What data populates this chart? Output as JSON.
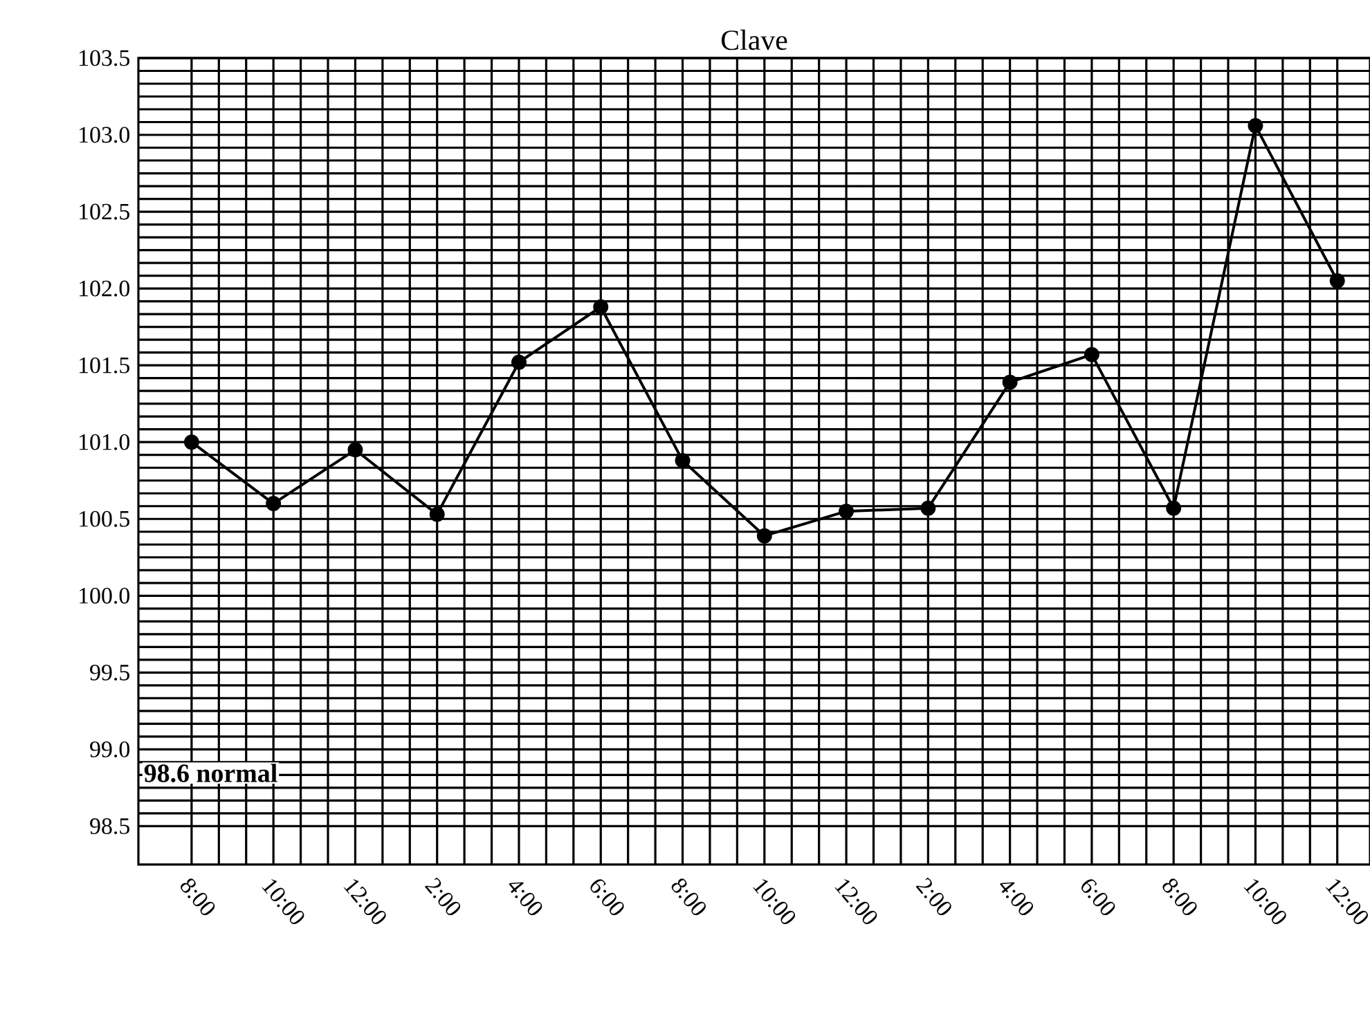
{
  "chart_data": {
    "type": "line",
    "title": "Clave",
    "categories": [
      "8:00",
      "10:00",
      "12:00",
      "2:00",
      "4:00",
      "6:00",
      "8:00",
      "10:00",
      "12:00",
      "2:00",
      "4:00",
      "6:00",
      "8:00",
      "10:00",
      "12:00"
    ],
    "values": [
      101.0,
      100.6,
      100.95,
      100.53,
      101.52,
      101.88,
      100.88,
      100.39,
      100.55,
      100.57,
      101.39,
      101.57,
      100.57,
      103.06,
      102.05
    ],
    "color": "#000000",
    "marker": "circle",
    "line_style": "solid",
    "grid": true,
    "ylim": [
      98.25,
      103.5
    ],
    "yticks": [
      98.5,
      {
        "value": 99,
        "label": "99.0"
      },
      99.5,
      {
        "value": 100,
        "label": "100.0"
      },
      100.5,
      {
        "value": 101,
        "label": "101.0"
      },
      101.5,
      {
        "value": 102,
        "label": "102.0"
      },
      102.5,
      {
        "value": 103,
        "label": "103.0"
      },
      103.5
    ],
    "annotations": [
      "98.6 normal"
    ]
  }
}
